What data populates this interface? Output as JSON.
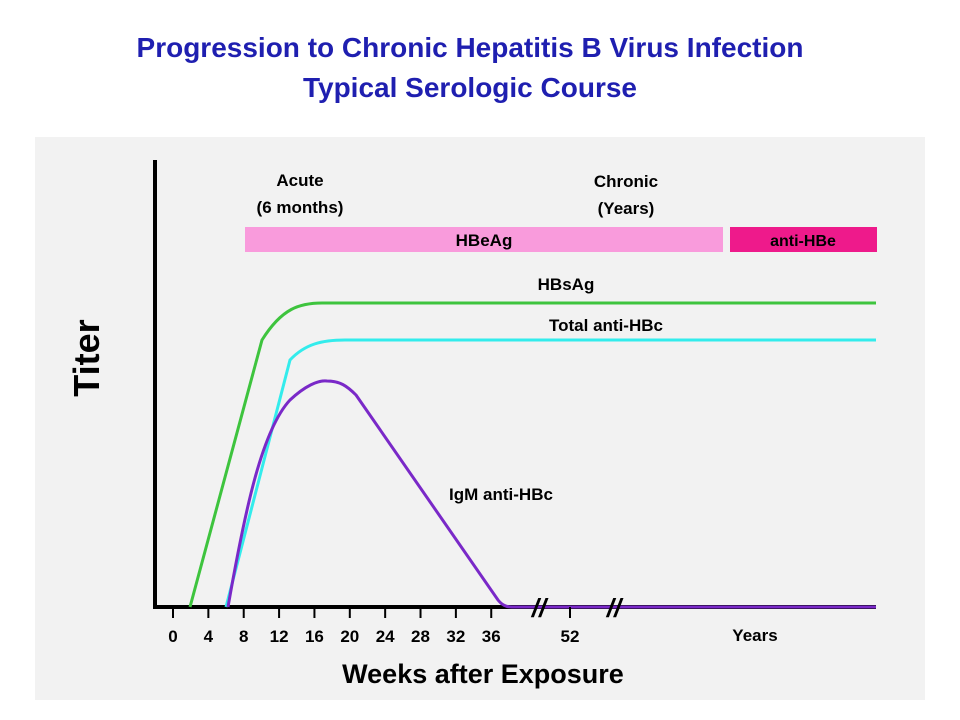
{
  "title": {
    "line1": "Progression to Chronic Hepatitis B Virus Infection",
    "line2": "Typical Serologic Course"
  },
  "chart_data": {
    "type": "line",
    "title": "Progression to Chronic Hepatitis B Virus Infection Typical Serologic Course",
    "xlabel": "Weeks after Exposure",
    "ylabel": "Titer",
    "x_tick_labels": [
      "0",
      "4",
      "8",
      "12",
      "16",
      "20",
      "24",
      "28",
      "32",
      "36",
      "52",
      "Years"
    ],
    "axis_breaks": [
      "//",
      "//"
    ],
    "phases": [
      {
        "label_line1": "Acute",
        "label_line2": "(6 months)"
      },
      {
        "label_line1": "Chronic",
        "label_line2": "(Years)"
      }
    ],
    "bands": [
      {
        "label": "HBeAg",
        "color": "#f99bdc",
        "from_week": 8
      },
      {
        "label": "anti-HBe",
        "color": "#ee1a8b"
      }
    ],
    "series": [
      {
        "name": "HBsAg",
        "color": "#3ec43e",
        "y_scale": "relative (0-100)",
        "points": [
          [
            2,
            0
          ],
          [
            14,
            95
          ],
          [
            16,
            100
          ],
          [
            52,
            100
          ],
          [
            "Years",
            100
          ]
        ]
      },
      {
        "name": "Total anti-HBc",
        "color": "#33ecec",
        "y_scale": "relative (0-100)",
        "points": [
          [
            6,
            0
          ],
          [
            14,
            82
          ],
          [
            18,
            88
          ],
          [
            52,
            88
          ],
          [
            "Years",
            88
          ]
        ]
      },
      {
        "name": "IgM anti-HBc",
        "color": "#7a29c8",
        "y_scale": "relative (0-100)",
        "points": [
          [
            6,
            0
          ],
          [
            16,
            75
          ],
          [
            18,
            74
          ],
          [
            36,
            0
          ],
          [
            52,
            0
          ],
          [
            "Years",
            0
          ]
        ]
      }
    ],
    "grid": false,
    "legend": "inline labels"
  }
}
